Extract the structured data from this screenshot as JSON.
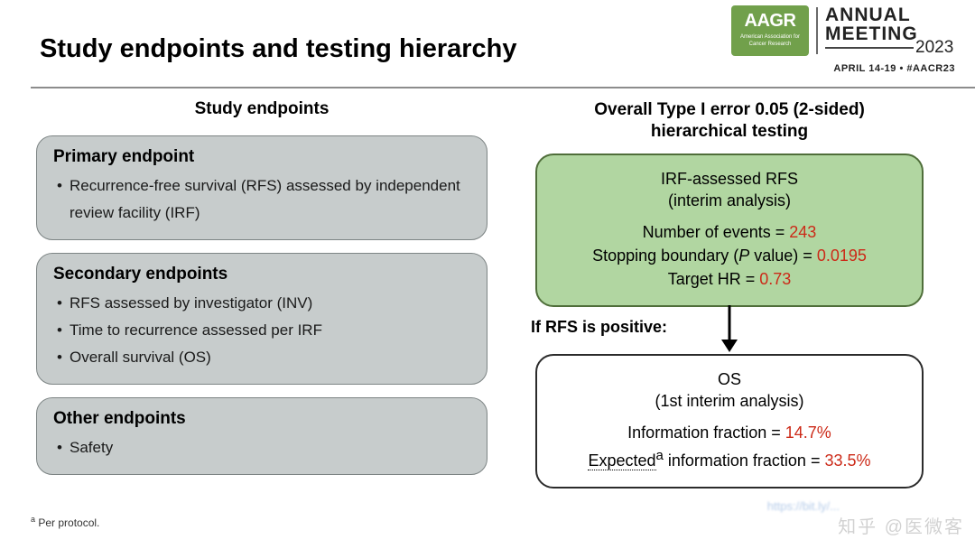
{
  "title": "Study endpoints and testing hierarchy",
  "logo": {
    "badge_main": "AAGR",
    "badge_sub": "American Association for Cancer Research",
    "line1": "ANNUAL",
    "line2": "MEETING",
    "year": "2023",
    "dates": "APRIL 14-19 • #AACR23"
  },
  "left": {
    "heading": "Study endpoints",
    "primary": {
      "title": "Primary endpoint",
      "items": [
        "Recurrence-free survival (RFS) assessed by independent review facility (IRF)"
      ]
    },
    "secondary": {
      "title": "Secondary endpoints",
      "items": [
        "RFS assessed by investigator (INV)",
        "Time to recurrence assessed per IRF",
        "Overall survival (OS)"
      ]
    },
    "other": {
      "title": "Other endpoints",
      "items": [
        "Safety"
      ]
    }
  },
  "right": {
    "heading_l1": "Overall Type I error 0.05 (2-sided)",
    "heading_l2": "hierarchical testing",
    "box1": {
      "title_l1": "IRF-assessed RFS",
      "title_l2": "(interim analysis)",
      "row1_label": "Number of events = ",
      "row1_value": "243",
      "row2_label_a": "Stopping boundary (",
      "row2_label_p": "P",
      "row2_label_b": " value) = ",
      "row2_value": "0.0195",
      "row3_label": "Target HR = ",
      "row3_value": "0.73"
    },
    "arrow_label": "If RFS is positive:",
    "box2": {
      "title_l1": "OS",
      "title_l2": "(1st interim analysis)",
      "row1_label": "Information fraction = ",
      "row1_value": "14.7%",
      "row2_label_a": "Expected",
      "row2_sup": "a",
      "row2_label_b": " information fraction = ",
      "row2_value": "33.5%"
    }
  },
  "footnote_sup": "a",
  "footnote": " Per protocol.",
  "watermark": "知乎 @医微客",
  "url_hint": "https://bit.ly/..."
}
